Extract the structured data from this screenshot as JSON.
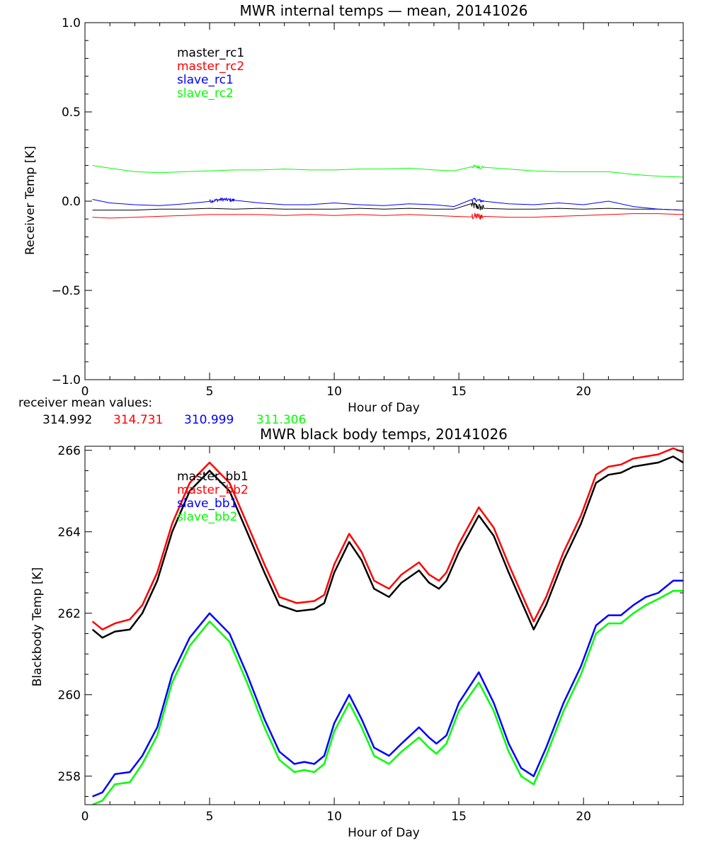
{
  "chart_data": [
    {
      "type": "line",
      "title": "MWR internal temps — mean, 20141026",
      "xlabel": "Hour of Day",
      "ylabel": "Receiver Temp [K]",
      "xlim": [
        0,
        24
      ],
      "ylim": [
        -1.0,
        1.0
      ],
      "xticks": [
        0,
        5,
        10,
        15,
        20
      ],
      "yticks": [
        -1.0,
        -0.5,
        0.0,
        0.5,
        1.0
      ],
      "ytick_labels": [
        "−1.0",
        "−0.5",
        "0.0",
        "0.5",
        "1.0"
      ],
      "grid": false,
      "legend": "top-left",
      "series": [
        {
          "name": "master_rc1",
          "color": "#000000",
          "noise": 0.02,
          "x": [
            0.3,
            1,
            2,
            3,
            4,
            5,
            6,
            7,
            8,
            9,
            10,
            11,
            12,
            13,
            14,
            14.8,
            15.5,
            16,
            17,
            18,
            19,
            20,
            21,
            22,
            23,
            24
          ],
          "y": [
            -0.05,
            -0.05,
            -0.05,
            -0.045,
            -0.045,
            -0.04,
            -0.045,
            -0.04,
            -0.045,
            -0.045,
            -0.045,
            -0.04,
            -0.045,
            -0.04,
            -0.045,
            -0.045,
            -0.02,
            -0.04,
            -0.045,
            -0.045,
            -0.04,
            -0.045,
            -0.04,
            -0.045,
            -0.045,
            -0.05
          ]
        },
        {
          "name": "master_rc2",
          "color": "#ff0000",
          "noise": 0.02,
          "x": [
            0.3,
            1,
            2,
            3,
            4,
            5,
            6,
            7,
            8,
            9,
            10,
            11,
            12,
            13,
            14,
            14.8,
            15.5,
            16,
            17,
            18,
            19,
            20,
            21,
            22,
            23,
            24
          ],
          "y": [
            -0.09,
            -0.095,
            -0.09,
            -0.085,
            -0.08,
            -0.075,
            -0.075,
            -0.075,
            -0.08,
            -0.075,
            -0.08,
            -0.075,
            -0.08,
            -0.075,
            -0.08,
            -0.085,
            -0.085,
            -0.085,
            -0.09,
            -0.09,
            -0.085,
            -0.08,
            -0.075,
            -0.07,
            -0.07,
            -0.075
          ]
        },
        {
          "name": "slave_rc1",
          "color": "#0000ff",
          "noise": 0.01,
          "x": [
            0.3,
            1,
            2,
            3,
            4,
            5,
            5.5,
            6,
            7,
            8,
            9,
            10,
            11,
            12,
            13,
            14,
            14.8,
            15.5,
            16,
            17,
            18,
            19,
            20,
            21,
            22,
            23,
            24
          ],
          "y": [
            0.01,
            -0.01,
            -0.02,
            -0.025,
            -0.015,
            0.0,
            0.01,
            0.005,
            -0.01,
            -0.02,
            -0.02,
            -0.01,
            -0.02,
            -0.025,
            -0.015,
            -0.02,
            -0.03,
            0.01,
            0.0,
            -0.015,
            -0.02,
            -0.01,
            -0.02,
            0.0,
            -0.03,
            -0.045,
            -0.05
          ]
        },
        {
          "name": "slave_rc2",
          "color": "#00ff00",
          "noise": 0.01,
          "x": [
            0.3,
            1,
            2,
            3,
            4,
            5,
            6,
            7,
            8,
            9,
            10,
            11,
            12,
            13,
            14,
            14.8,
            15.5,
            16,
            17,
            18,
            19,
            20,
            21,
            22,
            23,
            24
          ],
          "y": [
            0.2,
            0.185,
            0.165,
            0.16,
            0.165,
            0.17,
            0.175,
            0.175,
            0.18,
            0.175,
            0.175,
            0.18,
            0.18,
            0.185,
            0.175,
            0.17,
            0.195,
            0.19,
            0.18,
            0.17,
            0.165,
            0.165,
            0.165,
            0.15,
            0.14,
            0.135
          ]
        }
      ]
    },
    {
      "type": "line",
      "title": "MWR black body temps, 20141026",
      "xlabel": "Hour of Day",
      "ylabel": "Blackbody Temp [K]",
      "xlim": [
        0,
        24
      ],
      "ylim": [
        257.3,
        266.1
      ],
      "xticks": [
        0,
        5,
        10,
        15,
        20
      ],
      "yticks": [
        258,
        260,
        262,
        264,
        266
      ],
      "ytick_labels": [
        "258",
        "260",
        "262",
        "264",
        "266"
      ],
      "grid": false,
      "legend": "top-left",
      "series": [
        {
          "name": "master_bb1",
          "color": "#000000",
          "noise": 0,
          "x": [
            0.3,
            0.7,
            1.2,
            1.8,
            2.3,
            2.9,
            3.5,
            4.2,
            5.0,
            5.8,
            6.5,
            7.2,
            7.8,
            8.5,
            9.2,
            9.6,
            10.0,
            10.6,
            11.1,
            11.6,
            12.2,
            12.7,
            13.4,
            13.8,
            14.2,
            14.5,
            15.0,
            15.8,
            16.4,
            17.0,
            17.5,
            18.0,
            18.5,
            19.2,
            19.9,
            20.5,
            21.0,
            21.5,
            22.0,
            22.5,
            23.0,
            23.6,
            24.0
          ],
          "y": [
            261.6,
            261.4,
            261.55,
            261.6,
            262.0,
            262.8,
            264.0,
            265.0,
            265.5,
            265.0,
            264.0,
            263.0,
            262.2,
            262.05,
            262.1,
            262.25,
            263.0,
            263.75,
            263.3,
            262.6,
            262.4,
            262.75,
            263.05,
            262.75,
            262.6,
            262.8,
            263.5,
            264.4,
            263.9,
            263.0,
            262.3,
            261.6,
            262.2,
            263.3,
            264.2,
            265.2,
            265.4,
            265.45,
            265.6,
            265.65,
            265.7,
            265.85,
            265.7
          ]
        },
        {
          "name": "master_bb2",
          "color": "#ff0000",
          "noise": 0,
          "x": [
            0.3,
            0.7,
            1.2,
            1.8,
            2.3,
            2.9,
            3.5,
            4.2,
            5.0,
            5.8,
            6.5,
            7.2,
            7.8,
            8.5,
            9.2,
            9.6,
            10.0,
            10.6,
            11.1,
            11.6,
            12.2,
            12.7,
            13.4,
            13.8,
            14.2,
            14.5,
            15.0,
            15.8,
            16.4,
            17.0,
            17.5,
            18.0,
            18.5,
            19.2,
            19.9,
            20.5,
            21.0,
            21.5,
            22.0,
            22.5,
            23.0,
            23.6,
            24.0
          ],
          "y": [
            261.8,
            261.6,
            261.75,
            261.85,
            262.2,
            263.0,
            264.2,
            265.2,
            265.7,
            265.2,
            264.2,
            263.2,
            262.4,
            262.25,
            262.3,
            262.45,
            263.2,
            263.95,
            263.5,
            262.8,
            262.6,
            262.95,
            263.25,
            262.95,
            262.8,
            263.0,
            263.7,
            264.6,
            264.1,
            263.2,
            262.5,
            261.8,
            262.4,
            263.5,
            264.4,
            265.4,
            265.6,
            265.65,
            265.8,
            265.85,
            265.9,
            266.05,
            265.95
          ]
        },
        {
          "name": "slave_bb1",
          "color": "#0000ff",
          "noise": 0,
          "x": [
            0.3,
            0.7,
            1.2,
            1.8,
            2.3,
            2.9,
            3.5,
            4.2,
            5.0,
            5.8,
            6.5,
            7.2,
            7.8,
            8.4,
            8.8,
            9.2,
            9.6,
            10.0,
            10.6,
            11.1,
            11.6,
            12.2,
            12.7,
            13.4,
            13.8,
            14.1,
            14.5,
            15.0,
            15.8,
            16.4,
            17.0,
            17.5,
            18.0,
            18.5,
            19.2,
            19.9,
            20.5,
            21.0,
            21.5,
            22.0,
            22.5,
            23.0,
            23.6,
            24.0
          ],
          "y": [
            257.5,
            257.6,
            258.05,
            258.1,
            258.5,
            259.2,
            260.5,
            261.4,
            262.0,
            261.5,
            260.5,
            259.4,
            258.6,
            258.3,
            258.35,
            258.3,
            258.5,
            259.3,
            260.0,
            259.4,
            258.7,
            258.5,
            258.8,
            259.2,
            258.95,
            258.8,
            259.0,
            259.8,
            260.55,
            259.8,
            258.8,
            258.2,
            258.0,
            258.7,
            259.8,
            260.7,
            261.7,
            261.95,
            261.95,
            262.2,
            262.4,
            262.5,
            262.8,
            262.8
          ]
        },
        {
          "name": "slave_bb2",
          "color": "#00ff00",
          "noise": 0,
          "x": [
            0.3,
            0.7,
            1.2,
            1.8,
            2.3,
            2.9,
            3.5,
            4.2,
            5.0,
            5.8,
            6.5,
            7.2,
            7.8,
            8.4,
            8.8,
            9.2,
            9.6,
            10.0,
            10.6,
            11.1,
            11.6,
            12.2,
            12.7,
            13.4,
            13.8,
            14.1,
            14.5,
            15.0,
            15.8,
            16.4,
            17.0,
            17.5,
            18.0,
            18.5,
            19.2,
            19.9,
            20.5,
            21.0,
            21.5,
            22.0,
            22.5,
            23.0,
            23.6,
            24.0
          ],
          "y": [
            257.3,
            257.4,
            257.8,
            257.85,
            258.3,
            259.0,
            260.3,
            261.2,
            261.8,
            261.3,
            260.3,
            259.2,
            258.4,
            258.1,
            258.15,
            258.1,
            258.3,
            259.1,
            259.8,
            259.2,
            258.5,
            258.3,
            258.6,
            258.95,
            258.7,
            258.55,
            258.8,
            259.6,
            260.3,
            259.6,
            258.6,
            258.0,
            257.8,
            258.5,
            259.6,
            260.5,
            261.5,
            261.75,
            261.75,
            262.0,
            262.2,
            262.35,
            262.55,
            262.55
          ]
        }
      ]
    }
  ],
  "receiver_mean": {
    "label": "receiver mean values:",
    "values": [
      {
        "text": "314.992",
        "color": "#000000"
      },
      {
        "text": "314.731",
        "color": "#ff0000"
      },
      {
        "text": "310.999",
        "color": "#0000ff"
      },
      {
        "text": "311.306",
        "color": "#00ff00"
      }
    ]
  }
}
